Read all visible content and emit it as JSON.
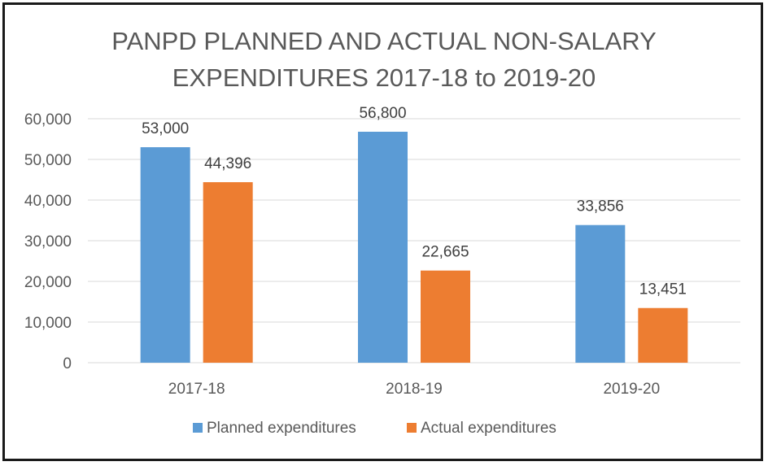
{
  "chart_data": {
    "type": "bar",
    "title": [
      "PANPD PLANNED AND ACTUAL NON-SALARY",
      "EXPENDITURES 2017-18 to 2019-20"
    ],
    "xlabel": "",
    "ylabel": "",
    "categories": [
      "2017-18",
      "2018-19",
      "2019-20"
    ],
    "series": [
      {
        "name": "Planned expenditures",
        "color": "#5B9BD5",
        "values": [
          53000,
          56800,
          33856
        ],
        "labels": [
          "53,000",
          "56,800",
          "33,856"
        ]
      },
      {
        "name": "Actual expenditures",
        "color": "#ED7D31",
        "values": [
          44396,
          22665,
          13451
        ],
        "labels": [
          "44,396",
          "22,665",
          "13,451"
        ]
      }
    ],
    "ylim": [
      0,
      60000
    ],
    "yticks": [
      0,
      10000,
      20000,
      30000,
      40000,
      50000,
      60000
    ],
    "ytick_labels": [
      "0",
      "10,000",
      "20,000",
      "30,000",
      "40,000",
      "50,000",
      "60,000"
    ],
    "grid": true,
    "legend_position": "bottom"
  }
}
